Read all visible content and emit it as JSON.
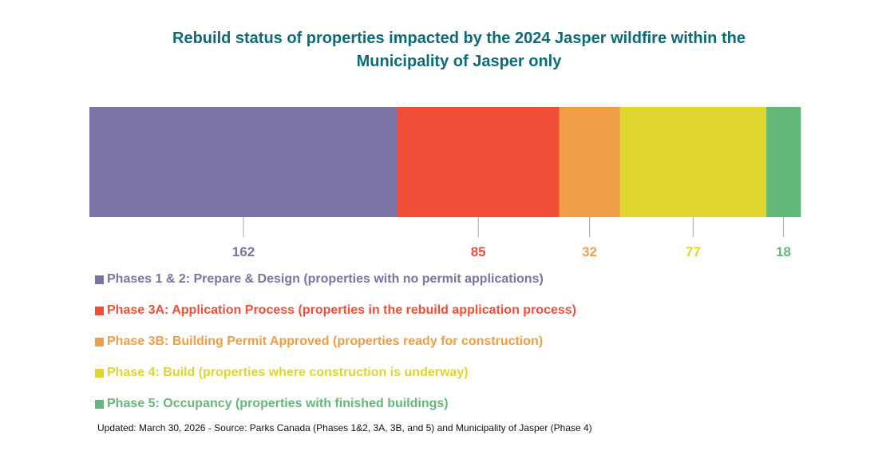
{
  "chart_data": {
    "type": "bar",
    "orientation": "horizontal-stacked",
    "title": "Rebuild status of properties impacted by the 2024 Jasper wildfire within the Municipality of Jasper only",
    "title_lines": [
      "Rebuild status of properties impacted by the 2024 Jasper wildfire within the",
      "Municipality of Jasper only"
    ],
    "xlabel": "",
    "ylabel": "",
    "grid": false,
    "legend_position": "bottom",
    "series": [
      {
        "name": "Phases 1 & 2: Prepare & Design (properties with no permit applications)",
        "value": 162,
        "label": "162",
        "color": "#7b72a5"
      },
      {
        "name": "Phase 3A: Application Process (properties in the rebuild application process)",
        "value": 85,
        "label": "85",
        "color": "#ef4f36"
      },
      {
        "name": "Phase 3B: Building Permit Approved (properties ready for construction)",
        "value": 32,
        "label": "32",
        "color": "#ef9d47"
      },
      {
        "name": "Phase 4: Build (properties where construction is underway)",
        "value": 77,
        "label": "77",
        "color": "#e0d52c"
      },
      {
        "name": "Phase 5: Occupancy (properties with finished buildings)",
        "value": 18,
        "label": "18",
        "color": "#63b779"
      }
    ]
  },
  "footnote": "Updated: March 30, 2026  -  Source: Parks Canada (Phases 1&2, 3A, 3B, and 5) and Municipality of Jasper (Phase 4)"
}
